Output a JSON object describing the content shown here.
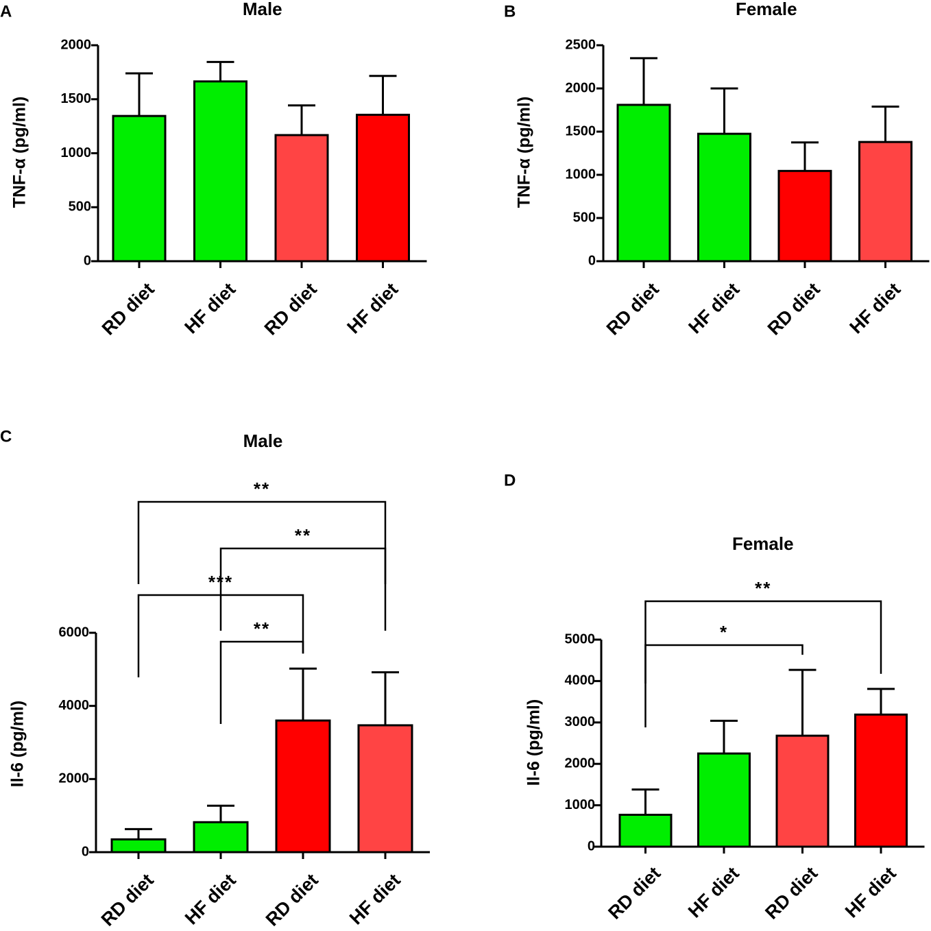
{
  "panels": [
    {
      "letter": "A",
      "chart_data": {
        "type": "bar",
        "title": "Male",
        "ylabel": "TNF-α (pg/ml)",
        "xlabel": "",
        "ylim": [
          0,
          2000
        ],
        "yticks": [
          0,
          500,
          1000,
          1500,
          2000
        ],
        "categories": [
          "RD diet",
          "HF diet",
          "RD diet",
          "HF diet"
        ],
        "values": [
          1345,
          1665,
          1168,
          1356
        ],
        "errors": [
          395,
          180,
          275,
          360
        ],
        "colors": [
          "#00ee00",
          "#00ee00",
          "#ff4444",
          "#ff0000"
        ],
        "significance": []
      }
    },
    {
      "letter": "B",
      "chart_data": {
        "type": "bar",
        "title": "Female",
        "ylabel": "TNF-α (pg/ml)",
        "xlabel": "",
        "ylim": [
          0,
          2500
        ],
        "yticks": [
          0,
          500,
          1000,
          1500,
          2000,
          2500
        ],
        "categories": [
          "RD diet",
          "HF diet",
          "RD diet",
          "HF diet"
        ],
        "values": [
          1810,
          1475,
          1045,
          1380
        ],
        "errors": [
          540,
          525,
          330,
          410
        ],
        "colors": [
          "#00ee00",
          "#00ee00",
          "#ff0000",
          "#ff4444"
        ],
        "significance": []
      }
    },
    {
      "letter": "C",
      "chart_data": {
        "type": "bar",
        "title": "Male",
        "ylabel": "Il-6 (pg/ml)",
        "xlabel": "",
        "ylim": [
          0,
          6000
        ],
        "yticks": [
          0,
          2000,
          4000,
          6000
        ],
        "categories": [
          "RD diet",
          "HF diet",
          "RD diet",
          "HF diet"
        ],
        "values": [
          350,
          820,
          3600,
          3470
        ],
        "errors": [
          280,
          450,
          1420,
          1450
        ],
        "colors": [
          "#00ee00",
          "#00ee00",
          "#ff0000",
          "#ff4444"
        ],
        "significance": [
          {
            "from": 0,
            "to": 3,
            "label": "**"
          },
          {
            "from": 1,
            "to": 3,
            "label": "**"
          },
          {
            "from": 0,
            "to": 2,
            "label": "***"
          },
          {
            "from": 1,
            "to": 2,
            "label": "**"
          }
        ]
      }
    },
    {
      "letter": "D",
      "chart_data": {
        "type": "bar",
        "title": "Female",
        "ylabel": "Il-6 (pg/ml)",
        "xlabel": "",
        "ylim": [
          0,
          5000
        ],
        "yticks": [
          0,
          1000,
          2000,
          3000,
          4000,
          5000
        ],
        "categories": [
          "RD diet",
          "HF diet",
          "RD diet",
          "HF diet"
        ],
        "values": [
          770,
          2250,
          2680,
          3190
        ],
        "errors": [
          610,
          790,
          1590,
          620
        ],
        "colors": [
          "#00ee00",
          "#00ee00",
          "#ff4444",
          "#ff0000"
        ],
        "significance": [
          {
            "from": 0,
            "to": 3,
            "label": "**"
          },
          {
            "from": 0,
            "to": 2,
            "label": "*"
          }
        ]
      }
    }
  ]
}
